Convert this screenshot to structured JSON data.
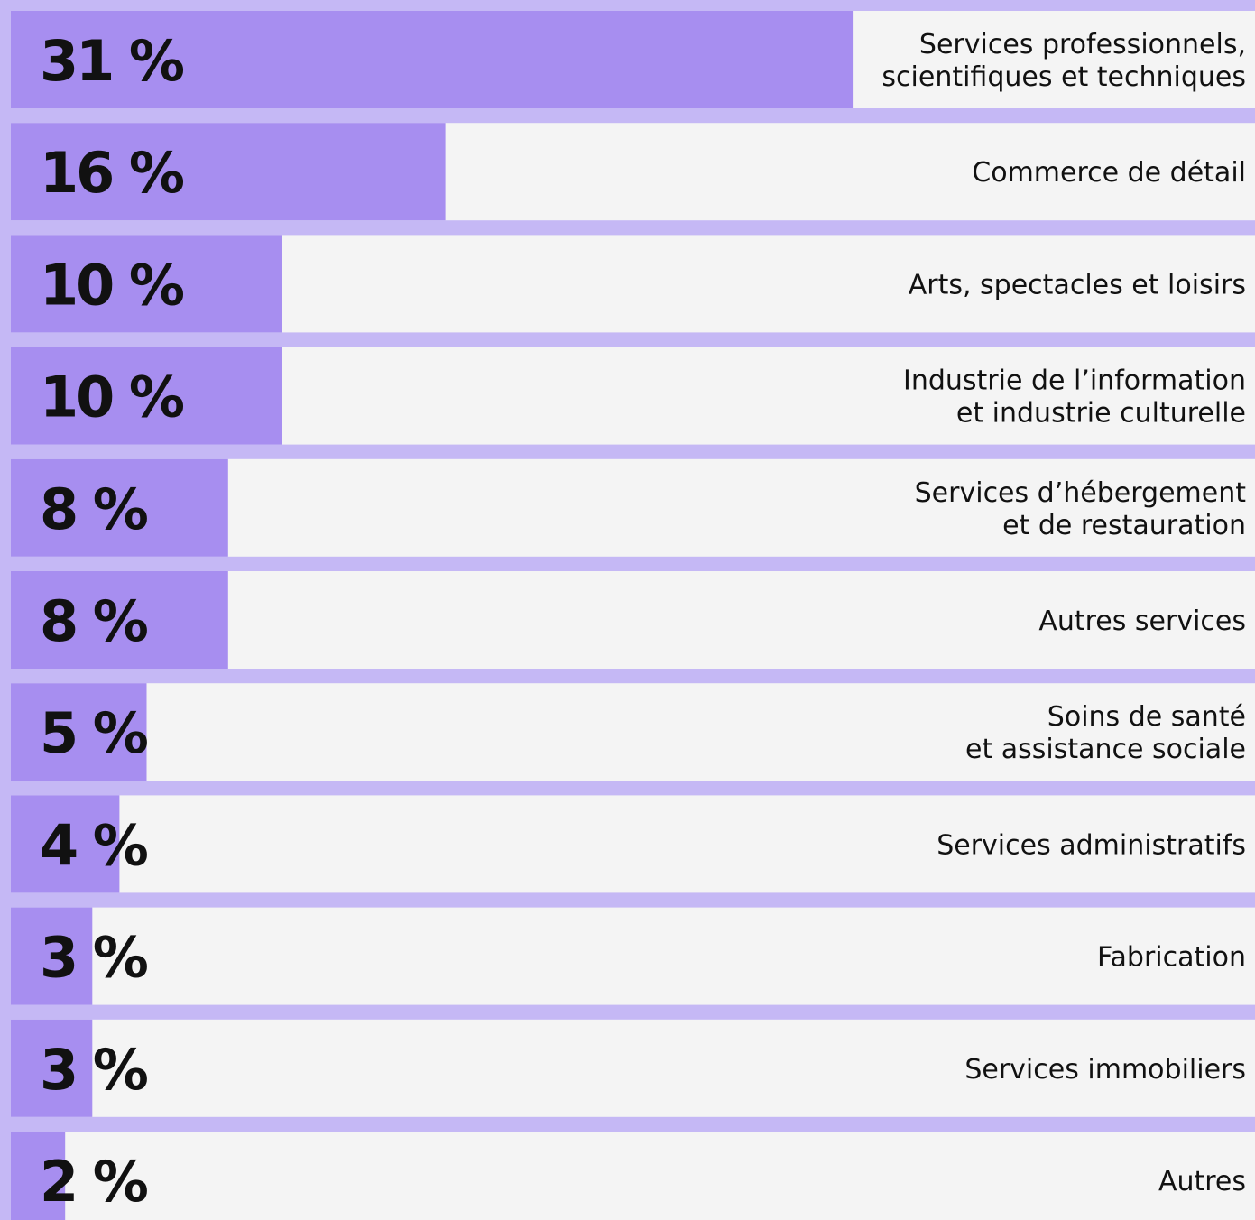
{
  "chart_data": {
    "type": "bar",
    "orientation": "horizontal",
    "categories": [
      [
        "Services professionnels,",
        "scientifiques et techniques"
      ],
      [
        "Commerce de détail"
      ],
      [
        "Arts, spectacles et loisirs"
      ],
      [
        "Industrie de l’information",
        "et industrie culturelle"
      ],
      [
        "Services d’hébergement",
        "et de restauration"
      ],
      [
        "Autres services"
      ],
      [
        "Soins de santé",
        "et assistance sociale"
      ],
      [
        "Services administratifs"
      ],
      [
        "Fabrication"
      ],
      [
        "Services immobiliers"
      ],
      [
        "Autres"
      ]
    ],
    "values": [
      31,
      16,
      10,
      10,
      8,
      8,
      5,
      4,
      3,
      3,
      2
    ],
    "value_labels": [
      "31 %",
      "16 %",
      "10 %",
      "10 %",
      "8 %",
      "8 %",
      "5 %",
      "4 %",
      "3 %",
      "3 %",
      "2 %"
    ],
    "color": "#a78ef0"
  }
}
